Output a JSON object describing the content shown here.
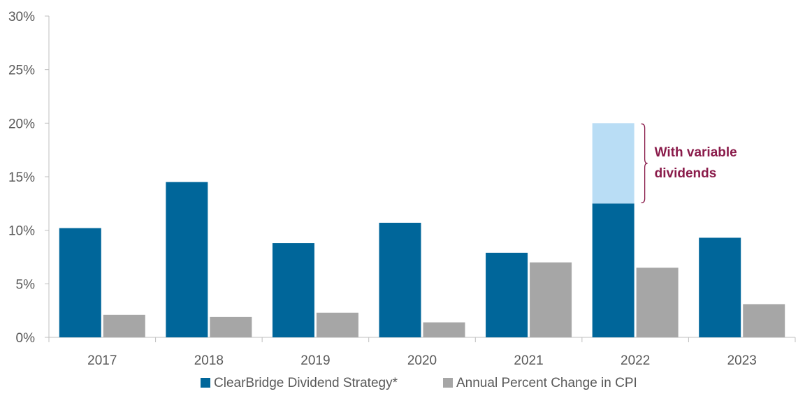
{
  "chart_data": {
    "type": "bar",
    "categories": [
      "2017",
      "2018",
      "2019",
      "2020",
      "2021",
      "2022",
      "2023"
    ],
    "series": [
      {
        "name": "ClearBridge Dividend Strategy*",
        "values": [
          10.2,
          14.5,
          8.8,
          10.7,
          7.9,
          12.5,
          9.3
        ],
        "color": "#00669a"
      },
      {
        "name": "Annual Percent Change in CPI",
        "values": [
          2.1,
          1.9,
          2.3,
          1.4,
          7.0,
          6.5,
          3.1
        ],
        "color": "#a6a6a6"
      }
    ],
    "stacked_extra": {
      "category": "2022",
      "series": "ClearBridge Dividend Strategy*",
      "value_top": 20.0,
      "color": "#b9ddf5"
    },
    "annotation": {
      "line1": "With variable",
      "line2": "dividends",
      "color": "#8a1b4a"
    },
    "y_ticks": [
      "0%",
      "5%",
      "10%",
      "15%",
      "20%",
      "25%",
      "30%"
    ],
    "ylim": [
      0,
      30
    ],
    "grid": false,
    "legend_position": "bottom"
  }
}
